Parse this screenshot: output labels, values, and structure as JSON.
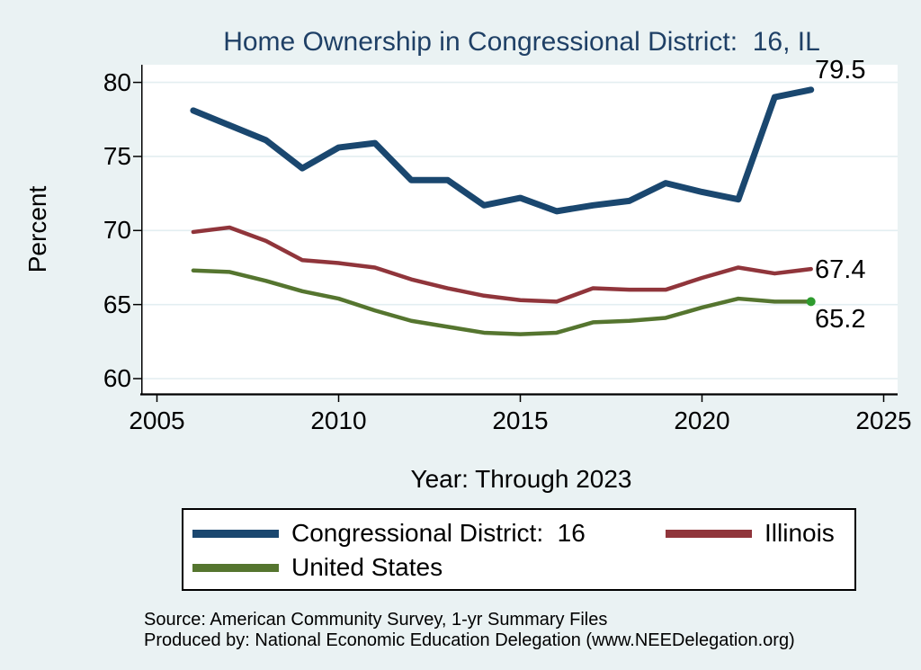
{
  "title": "Home Ownership in Congressional District:  16, IL",
  "chart_data": {
    "type": "line",
    "x_years": [
      2006,
      2007,
      2008,
      2009,
      2010,
      2011,
      2012,
      2013,
      2014,
      2015,
      2016,
      2017,
      2018,
      2019,
      2020,
      2021,
      2022,
      2023
    ],
    "series": [
      {
        "name": "Congressional District:  16",
        "color": "#1a476f",
        "line_width": 7,
        "end_label": "79.5",
        "values": [
          78.1,
          77.1,
          76.1,
          74.2,
          75.6,
          75.9,
          73.4,
          73.4,
          71.7,
          72.2,
          71.3,
          71.7,
          72.0,
          73.2,
          72.6,
          72.1,
          79.0,
          79.5
        ]
      },
      {
        "name": "Illinois",
        "color": "#90353b",
        "line_width": 4.5,
        "end_label": "67.4",
        "values": [
          69.9,
          70.2,
          69.3,
          68.0,
          67.8,
          67.5,
          66.7,
          66.1,
          65.6,
          65.3,
          65.2,
          66.1,
          66.0,
          66.0,
          66.8,
          67.5,
          67.1,
          67.4
        ]
      },
      {
        "name": "United States",
        "color": "#55752f",
        "line_width": 4.5,
        "end_label": "65.2",
        "end_marker_color": "#2e9b2e",
        "values": [
          67.3,
          67.2,
          66.6,
          65.9,
          65.4,
          64.6,
          63.9,
          63.5,
          63.1,
          63.0,
          63.1,
          63.8,
          63.9,
          64.1,
          64.8,
          65.4,
          65.2,
          65.2
        ]
      }
    ],
    "xlabel": "Year: Through 2023",
    "ylabel": "Percent",
    "xlim": [
      2005,
      2025
    ],
    "ylim": [
      60,
      80
    ],
    "xticks": [
      2005,
      2010,
      2015,
      2020,
      2025
    ],
    "yticks": [
      60,
      65,
      70,
      75,
      80
    ],
    "grid": "horizontal",
    "legend_position": "bottom"
  },
  "source": {
    "line1": "Source: American Community Survey, 1-yr Summary Files",
    "line2": "Produced by: National Economic Education Delegation (www.NEEDelegation.org)"
  },
  "colors": {
    "background": "#eaf2f3",
    "plot_background": "#ffffff",
    "title": "#1f4066",
    "gridline": "#e3eef1",
    "axis": "#000000"
  }
}
